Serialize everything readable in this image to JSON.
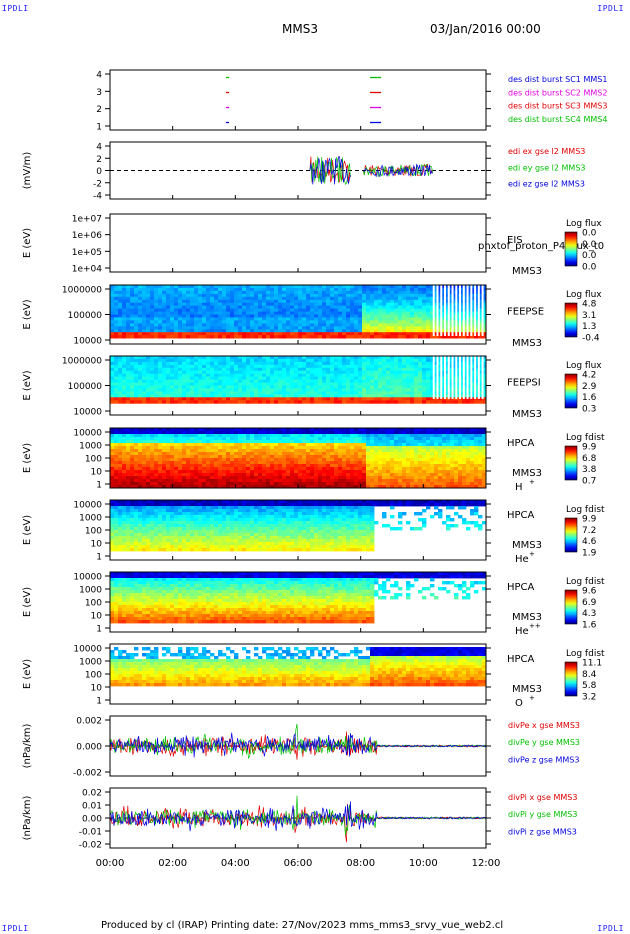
{
  "corners": {
    "tl": "IPDLI",
    "tr": "IPDLI",
    "bl": "IPDLI",
    "br": "IPDLI"
  },
  "header": {
    "spacecraft": "MMS3",
    "date": "03/Jan/2016 00:00"
  },
  "footer": {
    "text": "Produced by cl (IRAP)   Printing date: 27/Nov/2023   mms_mms3_srvy_vue_web2.cl"
  },
  "colors": {
    "red": "#e00000",
    "green": "#00c000",
    "blue": "#0000e0",
    "magenta": "#e000e0"
  },
  "chart_data": {
    "type": "multi-panel time series",
    "time_axis": {
      "start": "00:00",
      "end": "12:00",
      "ticks": [
        "00:00",
        "02:00",
        "04:00",
        "06:00",
        "08:00",
        "10:00",
        "12:00"
      ],
      "values_hours": [
        0,
        2,
        4,
        6,
        8,
        10,
        12
      ]
    },
    "panels": [
      {
        "id": "burst",
        "type": "marks",
        "yticks": [
          "4",
          "3",
          "2",
          "1"
        ],
        "ylim": [
          0.5,
          4.5
        ],
        "legend": [
          {
            "text": "des dist burst SC1 MMS1",
            "color": "#0000e0"
          },
          {
            "text": "des dist burst SC2 MMS2",
            "color": "#e000e0"
          },
          {
            "text": "des dist burst SC3 MMS3",
            "color": "#e00000"
          },
          {
            "text": "des dist burst SC4 MMS4",
            "color": "#00c000"
          }
        ],
        "intervals": [
          {
            "t": 3.7,
            "dt": 0.1
          },
          {
            "t": 8.3,
            "dt": 0.35
          }
        ]
      },
      {
        "id": "edi",
        "type": "line",
        "ylabel": "(mV/m)",
        "yticks": [
          "4",
          "2",
          "0",
          "-2",
          "-4"
        ],
        "ylim": [
          -5,
          5
        ],
        "legend": [
          {
            "text": "edi ex gse l2 MMS3",
            "color": "#e00000"
          },
          {
            "text": "edi ey gse l2 MMS3",
            "color": "#00c000"
          },
          {
            "text": "edi ez gse l2 MMS3",
            "color": "#0000e0"
          }
        ],
        "active_intervals": [
          [
            6.4,
            7.7
          ],
          [
            8.1,
            10.3
          ]
        ]
      },
      {
        "id": "eis",
        "type": "spectrogram",
        "ylabel": "E (eV)",
        "yticks": [
          "1e+07",
          "1e+06",
          "1e+05",
          "1e+04"
        ],
        "label1": "EIS",
        "overlay_text": "phxtof_proton_P4_flux_t0",
        "label2": "MMS3",
        "colorbar": {
          "title": "Log flux",
          "ticks": [
            "0.0",
            "0.0",
            "0.0",
            "0.0"
          ]
        },
        "data": "empty"
      },
      {
        "id": "feeps_e",
        "type": "spectrogram",
        "ylabel": "E (eV)",
        "yticks": [
          "1000000",
          "100000",
          "10000"
        ],
        "label1": "FEEPSE",
        "label2": "MMS3",
        "colorbar": {
          "title": "Log flux",
          "ticks": [
            "4.8",
            "3.1",
            "1.3",
            "-0.4"
          ]
        }
      },
      {
        "id": "feeps_i",
        "type": "spectrogram",
        "ylabel": "E (eV)",
        "yticks": [
          "1000000",
          "100000",
          "10000"
        ],
        "label1": "FEEPSI",
        "label2": "MMS3",
        "colorbar": {
          "title": "Log flux",
          "ticks": [
            "4.2",
            "2.9",
            "1.6",
            "0.3"
          ]
        }
      },
      {
        "id": "hpca_h",
        "type": "spectrogram",
        "ylabel": "E (eV)",
        "yticks": [
          "10000",
          "1000",
          "100",
          "10",
          "1"
        ],
        "label1": "HPCA",
        "label2": "MMS3",
        "species": "H",
        "charge": "+",
        "colorbar": {
          "title": "Log fdist",
          "ticks": [
            "9.9",
            "6.8",
            "3.8",
            "0.7"
          ]
        }
      },
      {
        "id": "hpca_he",
        "type": "spectrogram",
        "ylabel": "E (eV)",
        "yticks": [
          "10000",
          "1000",
          "100",
          "10",
          "1"
        ],
        "label1": "HPCA",
        "label2": "MMS3",
        "species": "He",
        "charge": "+",
        "colorbar": {
          "title": "Log fdist",
          "ticks": [
            "9.9",
            "7.2",
            "4.6",
            "1.9"
          ]
        }
      },
      {
        "id": "hpca_hepp",
        "type": "spectrogram",
        "ylabel": "E (eV)",
        "yticks": [
          "10000",
          "1000",
          "100",
          "10",
          "1"
        ],
        "label1": "HPCA",
        "label2": "MMS3",
        "species": "He",
        "charge": "++",
        "colorbar": {
          "title": "Log fdist",
          "ticks": [
            "9.6",
            "6.9",
            "4.3",
            "1.6"
          ]
        }
      },
      {
        "id": "hpca_o",
        "type": "spectrogram",
        "ylabel": "E (eV)",
        "yticks": [
          "10000",
          "1000",
          "100",
          "10",
          "1"
        ],
        "label1": "HPCA",
        "label2": "MMS3",
        "species": "O",
        "charge": "+",
        "colorbar": {
          "title": "Log fdist",
          "ticks": [
            "11.1",
            "8.4",
            "5.8",
            "3.2"
          ]
        }
      },
      {
        "id": "divpe",
        "type": "line",
        "ylabel": "(nPa/km)",
        "yticks": [
          "0.002",
          "0.000",
          "-0.002"
        ],
        "ylim": [
          -0.0035,
          0.0035
        ],
        "legend": [
          {
            "text": "divPe x gse MMS3",
            "color": "#e00000"
          },
          {
            "text": "divPe y gse MMS3",
            "color": "#00c000"
          },
          {
            "text": "divPe z gse MMS3",
            "color": "#0000e0"
          }
        ]
      },
      {
        "id": "divpi",
        "type": "line",
        "ylabel": "(nPa/km)",
        "yticks": [
          "0.02",
          "0.01",
          "0.00",
          "-0.01",
          "-0.02"
        ],
        "ylim": [
          -0.025,
          0.025
        ],
        "legend": [
          {
            "text": "divPi x gse MMS3",
            "color": "#e00000"
          },
          {
            "text": "divPi y gse MMS3",
            "color": "#00c000"
          },
          {
            "text": "divPi z gse MMS3",
            "color": "#0000e0"
          }
        ]
      }
    ]
  }
}
